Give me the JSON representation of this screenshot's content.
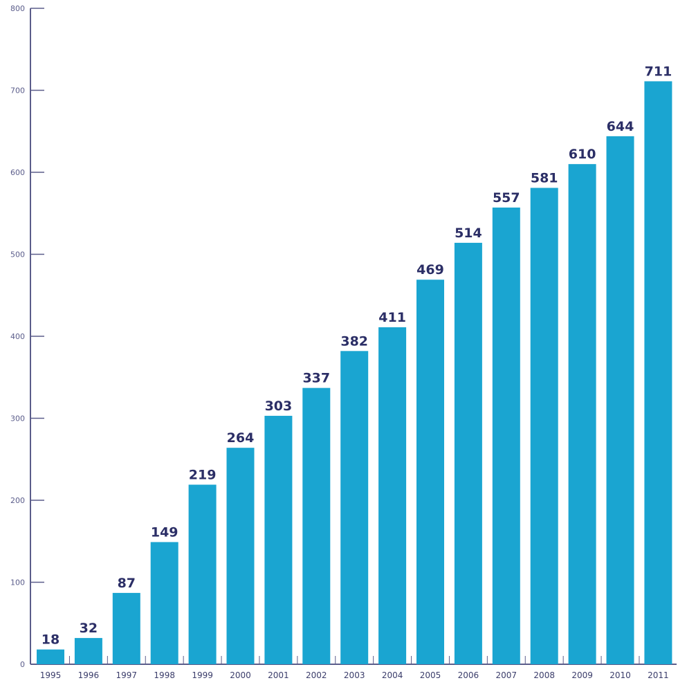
{
  "chart_data": {
    "type": "bar",
    "title": "",
    "xlabel": "",
    "ylabel": "",
    "categories": [
      "1995",
      "1996",
      "1997",
      "1998",
      "1999",
      "2000",
      "2001",
      "2002",
      "2003",
      "2004",
      "2005",
      "2006",
      "2007",
      "2008",
      "2009",
      "2010",
      "2011"
    ],
    "values": [
      18,
      32,
      87,
      149,
      219,
      264,
      303,
      337,
      382,
      411,
      469,
      514,
      557,
      581,
      610,
      644,
      711
    ],
    "data_labels": [
      "18",
      "32",
      "87",
      "149",
      "219",
      "264",
      "303",
      "337",
      "382",
      "411",
      "469",
      "514",
      "557",
      "581",
      "610",
      "644",
      "711"
    ],
    "ylim": [
      0,
      800
    ],
    "yticks": [
      "0",
      "100",
      "200",
      "300",
      "400",
      "500",
      "600",
      "700",
      "800"
    ],
    "grid": false,
    "colors": {
      "bar": "#1aa5d1",
      "label": "#2b2e66",
      "axis": "#5a5c8a"
    }
  }
}
